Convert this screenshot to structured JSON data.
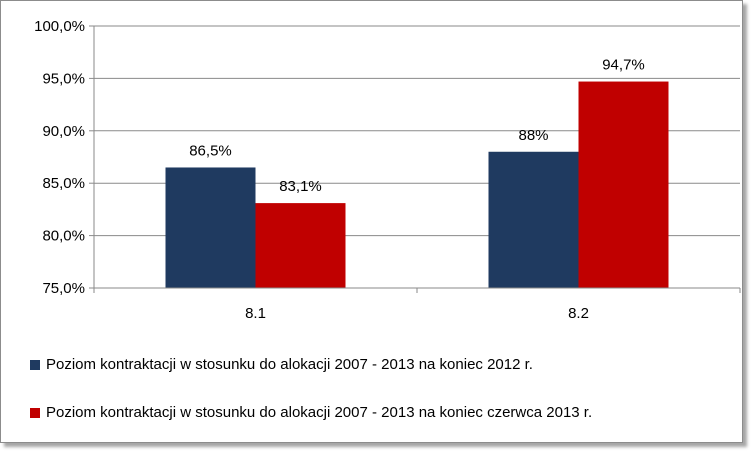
{
  "chart_data": {
    "type": "bar",
    "categories": [
      "8.1",
      "8.2"
    ],
    "series": [
      {
        "name": "Poziom kontraktacji w stosunku do alokacji 2007 - 2013 na koniec 2012 r.",
        "values": [
          86.5,
          88.0
        ],
        "labels": [
          "86,5%",
          "88%"
        ],
        "color": "#1f3a60"
      },
      {
        "name": "Poziom kontraktacji w stosunku do alokacji 2007 - 2013 na koniec czerwca 2013 r.",
        "values": [
          83.1,
          94.7
        ],
        "labels": [
          "83,1%",
          "94,7%"
        ],
        "color": "#c00000"
      }
    ],
    "ylim": [
      75,
      100
    ],
    "yticks": [
      {
        "value": 75,
        "label": "75,0%"
      },
      {
        "value": 80,
        "label": "80,0%"
      },
      {
        "value": 85,
        "label": "85,0%"
      },
      {
        "value": 90,
        "label": "90,0%"
      },
      {
        "value": 95,
        "label": "95,0%"
      },
      {
        "value": 100,
        "label": "100,0%"
      }
    ],
    "grid": true,
    "legend_position": "bottom"
  }
}
